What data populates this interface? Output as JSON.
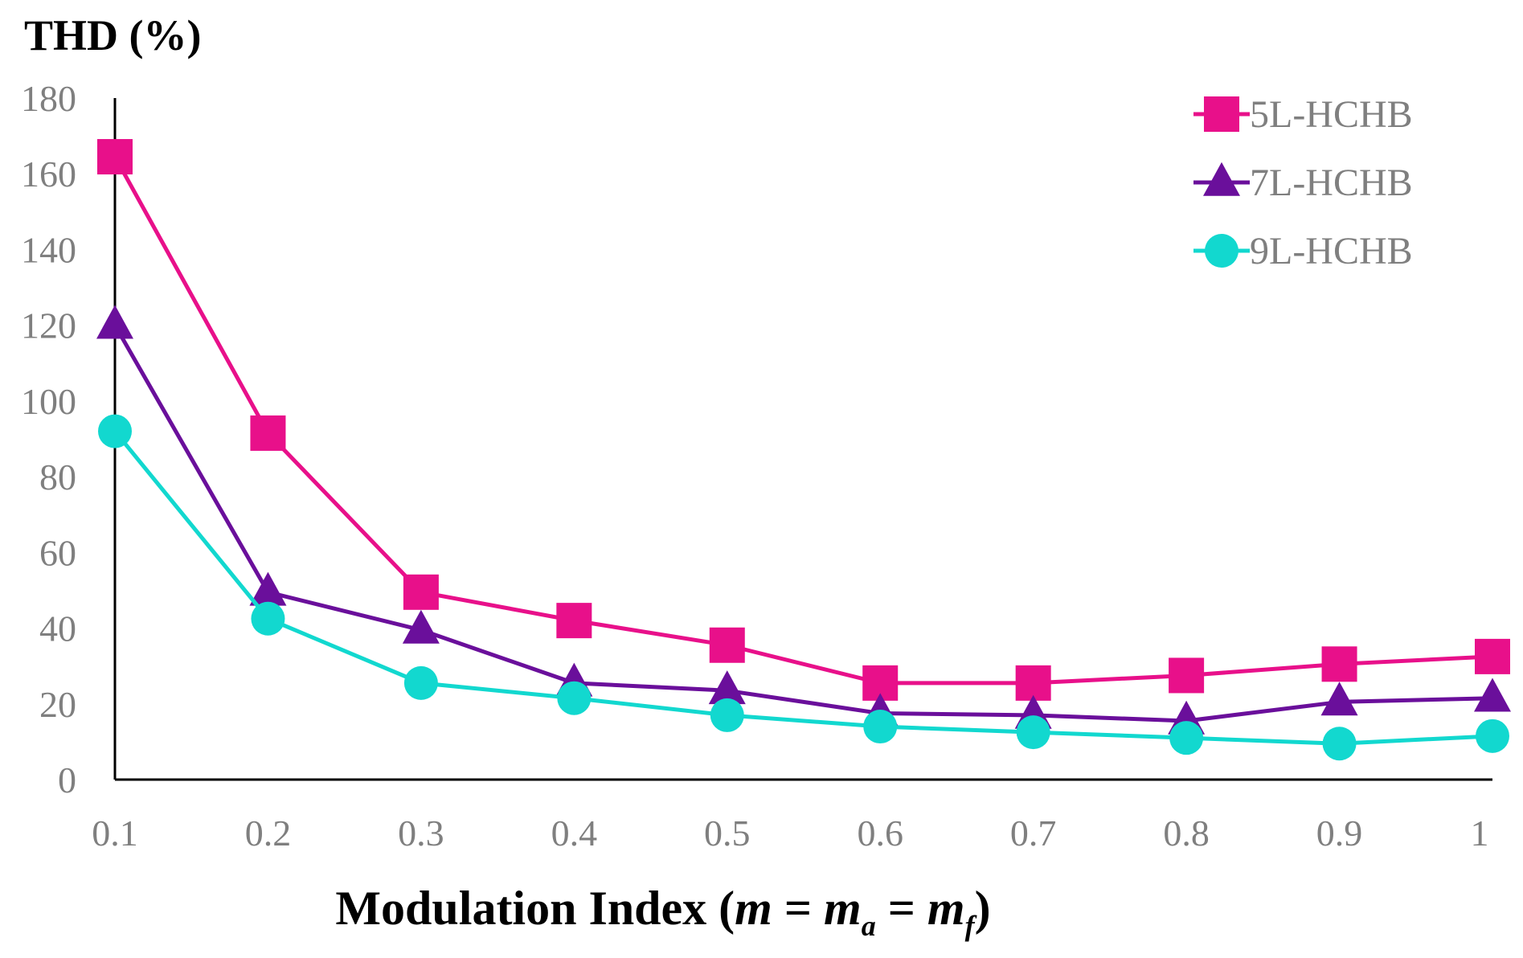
{
  "chart_data": {
    "type": "line",
    "ylabel": "THD (%)",
    "xlabel": {
      "prefix": "Modulation Index (",
      "m": "m",
      "eq1": " = ",
      "ma_base": "m",
      "ma_sub": "a",
      "eq2": " = ",
      "mf_base": "m",
      "mf_sub": "f",
      "suffix": ")"
    },
    "categories": [
      "0.1",
      "0.2",
      "0.3",
      "0.4",
      "0.5",
      "0.6",
      "0.7",
      "0.8",
      "0.9",
      "1"
    ],
    "ylim": [
      0,
      180
    ],
    "yticks": [
      0,
      20,
      40,
      60,
      80,
      100,
      120,
      140,
      160,
      180
    ],
    "grid": false,
    "legend_position": "top-right",
    "series": [
      {
        "name": "5L-HCHB",
        "marker": "square",
        "color": "#e8108a",
        "values": [
          164.5,
          91.5,
          49.5,
          42,
          35.5,
          25.5,
          25.5,
          27.5,
          30.5,
          32.5
        ]
      },
      {
        "name": "7L-HCHB",
        "marker": "triangle",
        "color": "#6a0f9b",
        "values": [
          120,
          49.5,
          39.5,
          25.5,
          23.5,
          17.5,
          17,
          15.5,
          20.5,
          21.5
        ]
      },
      {
        "name": "9L-HCHB",
        "marker": "circle",
        "color": "#12d8cf",
        "values": [
          92,
          42.5,
          25.5,
          21.5,
          17,
          14,
          12.5,
          11,
          9.5,
          11.5
        ]
      }
    ]
  }
}
